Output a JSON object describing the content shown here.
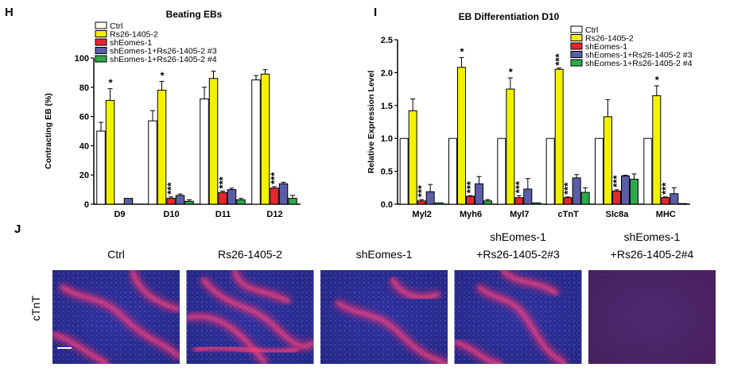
{
  "chart_data": [
    {
      "panel": "H",
      "type": "bar",
      "title": "Beating  EBs",
      "xlabel": "",
      "ylabel": "Contracting  EB (%)",
      "ylim": [
        0,
        100
      ],
      "yticks": [
        "0",
        "20",
        "40",
        "60",
        "80",
        "100"
      ],
      "categories": [
        "D9",
        "D10",
        "D11",
        "D12"
      ],
      "series": [
        {
          "name": "Ctrl",
          "color": "#ffffff",
          "values": [
            50,
            57,
            72,
            85
          ],
          "errors": [
            6,
            7,
            8,
            3
          ]
        },
        {
          "name": "Rs26-1405-2",
          "color": "#f2f200",
          "values": [
            71,
            78,
            86,
            89
          ],
          "errors": [
            8,
            6,
            5,
            3
          ]
        },
        {
          "name": "shEomes-1",
          "color": "#e8262a",
          "values": [
            0,
            4,
            8,
            11
          ],
          "errors": [
            0,
            1,
            1,
            1
          ]
        },
        {
          "name": "shEomes-1+Rs26-1405-2 #3",
          "color": "#5b5ea6",
          "values": [
            4,
            6,
            10,
            14
          ],
          "errors": [
            0,
            1,
            1,
            1
          ]
        },
        {
          "name": "shEomes-1+Rs26-1405-2 #4",
          "color": "#2ea84a",
          "values": [
            0,
            2,
            3,
            4
          ],
          "errors": [
            0,
            1,
            1,
            2
          ]
        }
      ],
      "annotations": [
        {
          "category": "D9",
          "series": "Rs26-1405-2",
          "text": "*"
        },
        {
          "category": "D10",
          "series": "Rs26-1405-2",
          "text": "*"
        },
        {
          "category": "D10",
          "series": "shEomes-1",
          "text": "***"
        },
        {
          "category": "D11",
          "series": "shEomes-1",
          "text": "***"
        },
        {
          "category": "D12",
          "series": "shEomes-1",
          "text": "***"
        }
      ],
      "legend_position": "top-left"
    },
    {
      "panel": "I",
      "type": "bar",
      "title": "EB Differentiation D10",
      "xlabel": "",
      "ylabel": "Relative Expression Level",
      "ylim": [
        0,
        2.5
      ],
      "yticks": [
        "0.0",
        "0.5",
        "1.0",
        "1.5",
        "2.0",
        "2.5"
      ],
      "categories": [
        "Myl2",
        "Myh6",
        "Myl7",
        "cTnT",
        "Slc8a",
        "MHC"
      ],
      "series": [
        {
          "name": "Ctrl",
          "color": "#ffffff",
          "values": [
            1.0,
            1.0,
            1.0,
            1.0,
            1.0,
            1.0
          ],
          "errors": [
            0,
            0,
            0,
            0,
            0,
            0
          ]
        },
        {
          "name": "Rs26-1405-2",
          "color": "#f2f200",
          "values": [
            1.42,
            2.08,
            1.75,
            2.05,
            1.33,
            1.65
          ],
          "errors": [
            0.18,
            0.15,
            0.17,
            0.02,
            0.26,
            0.15
          ]
        },
        {
          "name": "shEomes-1",
          "color": "#e8262a",
          "values": [
            0.05,
            0.12,
            0.1,
            0.1,
            0.2,
            0.1
          ],
          "errors": [
            0.02,
            0.01,
            0.03,
            0.01,
            0.02,
            0.01
          ]
        },
        {
          "name": "shEomes-1+Rs26-1405-2 #3",
          "color": "#5b5ea6",
          "values": [
            0.19,
            0.31,
            0.23,
            0.4,
            0.43,
            0.16
          ],
          "errors": [
            0.11,
            0.11,
            0.16,
            0.05,
            0.01,
            0.09
          ]
        },
        {
          "name": "shEomes-1+Rs26-1405-2 #4",
          "color": "#2ea84a",
          "values": [
            0.02,
            0.05,
            0.02,
            0.18,
            0.38,
            0.01
          ],
          "errors": [
            0,
            0.02,
            0,
            0.07,
            0.08,
            0
          ]
        }
      ],
      "annotations": [
        {
          "category": "Myl2",
          "series": "shEomes-1",
          "text": "***"
        },
        {
          "category": "Myh6",
          "series": "Rs26-1405-2",
          "text": "*"
        },
        {
          "category": "Myh6",
          "series": "shEomes-1",
          "text": "***"
        },
        {
          "category": "Myl7",
          "series": "Rs26-1405-2",
          "text": "*"
        },
        {
          "category": "Myl7",
          "series": "shEomes-1",
          "text": "***"
        },
        {
          "category": "cTnT",
          "series": "Rs26-1405-2",
          "text": "***"
        },
        {
          "category": "cTnT",
          "series": "shEomes-1",
          "text": "***"
        },
        {
          "category": "Slc8a",
          "series": "shEomes-1",
          "text": "***"
        },
        {
          "category": "MHC",
          "series": "Rs26-1405-2",
          "text": "*"
        },
        {
          "category": "MHC",
          "series": "shEomes-1",
          "text": "***"
        }
      ],
      "legend_position": "top-right"
    }
  ],
  "panel_j": {
    "letter": "J",
    "row_label": "cTnT",
    "images": [
      {
        "line1": "",
        "line2": "Ctrl"
      },
      {
        "line1": "",
        "line2": "Rs26-1405-2"
      },
      {
        "line1": "",
        "line2": "shEomes-1"
      },
      {
        "line1": "shEomes-1",
        "line2": "+Rs26-1405-2#3"
      },
      {
        "line1": "shEomes-1",
        "line2": "+Rs26-1405-2#4"
      }
    ],
    "colors": {
      "nuclei": "#2b2f9e",
      "stain": "#e0245a",
      "background": "#1a1c5c"
    }
  }
}
